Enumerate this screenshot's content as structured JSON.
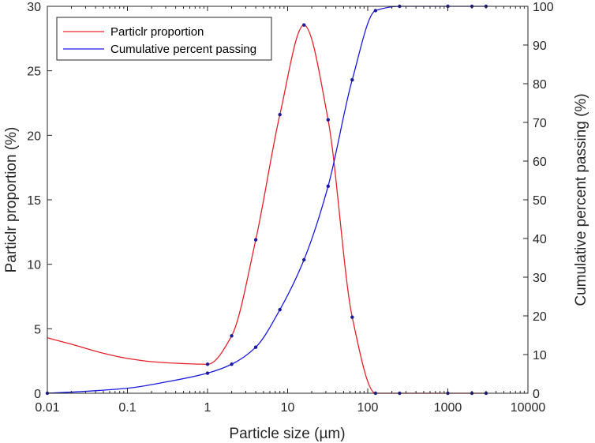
{
  "chart_data": {
    "type": "line",
    "xlabel": "Particle size (µm)",
    "ylabel_left": "Particlr proportion (%)",
    "ylabel_right": "Cumulative percent passing (%)",
    "x_scale": "log",
    "xlim": [
      0.01,
      10000
    ],
    "ylim_left": [
      0,
      30
    ],
    "ylim_right": [
      0,
      100
    ],
    "x_ticks": [
      {
        "value": 0.01,
        "label": "0.01"
      },
      {
        "value": 0.1,
        "label": "0.1"
      },
      {
        "value": 1,
        "label": "1"
      },
      {
        "value": 10,
        "label": "10"
      },
      {
        "value": 100,
        "label": "100"
      },
      {
        "value": 1000,
        "label": "1000"
      },
      {
        "value": 10000,
        "label": "10000"
      }
    ],
    "y_ticks_left": [
      0,
      5,
      10,
      15,
      20,
      25,
      30
    ],
    "y_ticks_right": [
      0,
      10,
      20,
      30,
      40,
      50,
      60,
      70,
      80,
      90,
      100
    ],
    "legend_position": "top-left",
    "series": [
      {
        "name": "Particlr proportion",
        "axis": "left",
        "color": "#e8202a",
        "points": [
          {
            "x": 1,
            "y": 2.25
          },
          {
            "x": 2,
            "y": 4.45
          },
          {
            "x": 4,
            "y": 11.9
          },
          {
            "x": 8,
            "y": 21.6
          },
          {
            "x": 16,
            "y": 28.55
          },
          {
            "x": 32,
            "y": 21.2
          },
          {
            "x": 64,
            "y": 5.9
          },
          {
            "x": 125,
            "y": 0
          },
          {
            "x": 250,
            "y": 0
          },
          {
            "x": 1000,
            "y": 0
          },
          {
            "x": 2000,
            "y": 0
          },
          {
            "x": 3000,
            "y": 0
          }
        ],
        "curve_points": [
          {
            "x": 0.01,
            "y": 4.3
          },
          {
            "x": 0.02,
            "y": 3.8
          },
          {
            "x": 0.05,
            "y": 3.1
          },
          {
            "x": 0.1,
            "y": 2.7
          },
          {
            "x": 0.2,
            "y": 2.45
          },
          {
            "x": 0.5,
            "y": 2.3
          },
          {
            "x": 1,
            "y": 2.25
          },
          {
            "x": 2,
            "y": 4.45
          },
          {
            "x": 4,
            "y": 11.9
          },
          {
            "x": 8,
            "y": 21.6
          },
          {
            "x": 16,
            "y": 28.55
          },
          {
            "x": 32,
            "y": 21.2
          },
          {
            "x": 64,
            "y": 5.9
          },
          {
            "x": 125,
            "y": 0
          },
          {
            "x": 250,
            "y": 0
          },
          {
            "x": 1000,
            "y": 0
          },
          {
            "x": 2000,
            "y": 0
          },
          {
            "x": 3000,
            "y": 0
          }
        ]
      },
      {
        "name": "Cumulative percent passing",
        "axis": "right",
        "color": "#1a1ae0",
        "points": [
          {
            "x": 0.01,
            "y": 0
          },
          {
            "x": 1,
            "y": 5.2
          },
          {
            "x": 2,
            "y": 7.5
          },
          {
            "x": 4,
            "y": 11.9
          },
          {
            "x": 8,
            "y": 21.6
          },
          {
            "x": 16,
            "y": 34.5
          },
          {
            "x": 32,
            "y": 53.5
          },
          {
            "x": 64,
            "y": 81
          },
          {
            "x": 125,
            "y": 98.9
          },
          {
            "x": 250,
            "y": 100
          },
          {
            "x": 1000,
            "y": 100
          },
          {
            "x": 2000,
            "y": 100
          },
          {
            "x": 3000,
            "y": 100
          }
        ],
        "curve_points": [
          {
            "x": 0.01,
            "y": 0
          },
          {
            "x": 0.03,
            "y": 0.5
          },
          {
            "x": 0.1,
            "y": 1.3
          },
          {
            "x": 0.3,
            "y": 2.9
          },
          {
            "x": 1,
            "y": 5.2
          },
          {
            "x": 2,
            "y": 7.5
          },
          {
            "x": 4,
            "y": 11.9
          },
          {
            "x": 8,
            "y": 21.6
          },
          {
            "x": 16,
            "y": 34.5
          },
          {
            "x": 32,
            "y": 53.5
          },
          {
            "x": 64,
            "y": 81
          },
          {
            "x": 125,
            "y": 98.9
          },
          {
            "x": 250,
            "y": 100
          },
          {
            "x": 1000,
            "y": 100
          },
          {
            "x": 2000,
            "y": 100
          },
          {
            "x": 3000,
            "y": 100
          }
        ]
      }
    ]
  }
}
